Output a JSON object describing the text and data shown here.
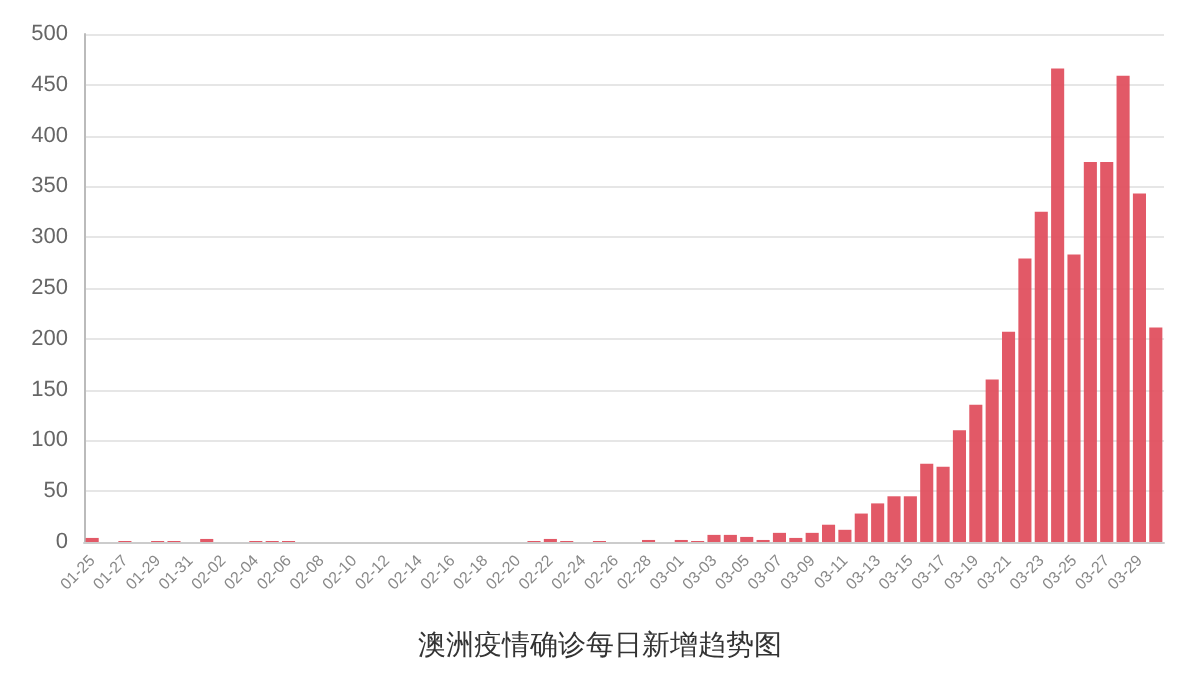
{
  "chart_data": {
    "type": "bar",
    "title": "澳洲疫情确诊每日新增趋势图",
    "categories": [
      "01-25",
      null,
      "01-27",
      null,
      "01-29",
      null,
      "01-31",
      null,
      "02-02",
      null,
      "02-04",
      null,
      "02-06",
      null,
      "02-08",
      null,
      "02-10",
      null,
      "02-12",
      null,
      "02-14",
      null,
      "02-16",
      null,
      "02-18",
      null,
      "02-20",
      null,
      "02-22",
      null,
      "02-24",
      null,
      "02-26",
      null,
      "02-28",
      null,
      "03-01",
      null,
      "03-03",
      null,
      "03-05",
      null,
      "03-07",
      null,
      "03-09",
      null,
      "03-11",
      null,
      "03-13",
      null,
      "03-15",
      null,
      "03-17",
      null,
      "03-19",
      null,
      "03-21",
      null,
      "03-23",
      null,
      "03-25",
      null,
      "03-27",
      null,
      "03-29",
      null
    ],
    "values": [
      4,
      0,
      1,
      0,
      1,
      1,
      0,
      3,
      0,
      0,
      1,
      1,
      1,
      0,
      0,
      0,
      0,
      0,
      0,
      0,
      0,
      0,
      0,
      0,
      0,
      0,
      0,
      1,
      3,
      1,
      0,
      1,
      0,
      0,
      2,
      0,
      2,
      1,
      7,
      7,
      5,
      2,
      9,
      4,
      9,
      17,
      12,
      28,
      38,
      45,
      45,
      77,
      74,
      110,
      135,
      160,
      207,
      279,
      325,
      466,
      283,
      374,
      374,
      459,
      343,
      211
    ],
    "color": "#e0505f",
    "ylim": [
      0,
      500
    ],
    "yticks": [
      0,
      50,
      100,
      150,
      200,
      250,
      300,
      350,
      400,
      450,
      500
    ],
    "grid": "y"
  }
}
